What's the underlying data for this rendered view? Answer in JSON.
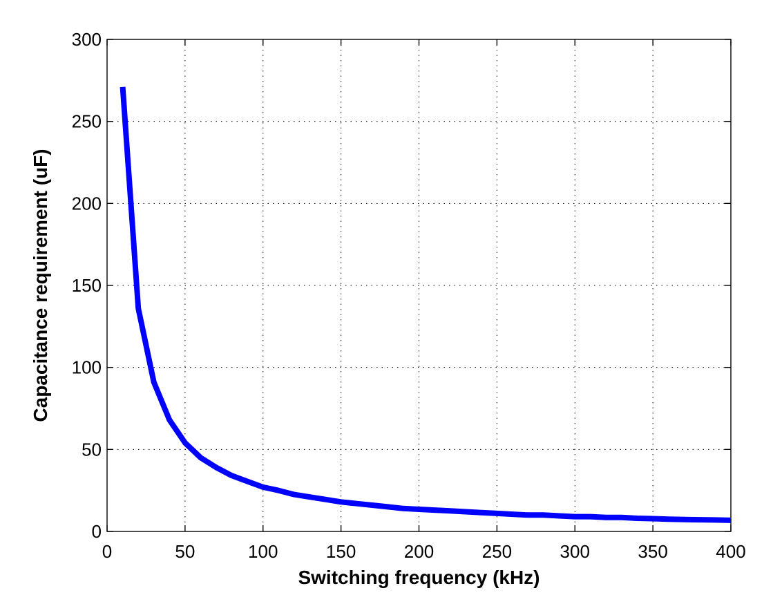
{
  "chart_data": {
    "type": "line",
    "title": "",
    "xlabel": "Switching frequency (kHz)",
    "ylabel": "Capacitance requirement (uF)",
    "xlim": [
      0,
      400
    ],
    "ylim": [
      0,
      300
    ],
    "xticks": [
      0,
      50,
      100,
      150,
      200,
      250,
      300,
      350,
      400
    ],
    "yticks": [
      0,
      50,
      100,
      150,
      200,
      250,
      300
    ],
    "xtick_labels": [
      "0",
      "50",
      "100",
      "150",
      "200",
      "250",
      "300",
      "350",
      "400"
    ],
    "ytick_labels": [
      "0",
      "50",
      "100",
      "150",
      "200",
      "250",
      "300"
    ],
    "grid": true,
    "series": [
      {
        "color": "#0000ff",
        "x": [
          10,
          20,
          30,
          40,
          50,
          60,
          70,
          80,
          90,
          100,
          110,
          120,
          130,
          140,
          150,
          160,
          170,
          180,
          190,
          200,
          210,
          220,
          230,
          240,
          250,
          260,
          270,
          280,
          290,
          300,
          310,
          320,
          330,
          340,
          350,
          360,
          370,
          380,
          390,
          400
        ],
        "y": [
          271,
          136,
          91,
          68,
          54,
          45,
          39,
          34,
          30.5,
          27,
          25,
          22.5,
          21,
          19.5,
          18,
          17,
          16,
          15,
          14,
          13.5,
          13,
          12.5,
          12,
          11.5,
          11,
          10.5,
          10,
          10,
          9.5,
          9,
          9,
          8.5,
          8.5,
          8,
          7.8,
          7.5,
          7.3,
          7.1,
          7,
          6.8
        ]
      }
    ]
  }
}
